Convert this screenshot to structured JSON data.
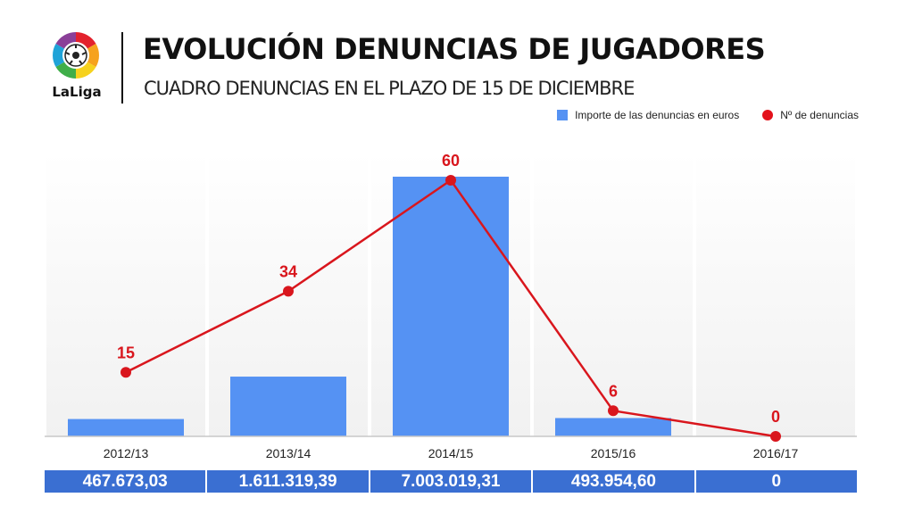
{
  "header": {
    "title": "EVOLUCIÓN DENUNCIAS DE JUGADORES",
    "subtitle": "CUADRO DENUNCIAS EN EL PLAZO DE 15 DE DICIEMBRE",
    "logo_text": "LaLiga"
  },
  "legend": {
    "bars_label": "Importe de las denuncias en euros",
    "line_label": "Nº de denuncias"
  },
  "colors": {
    "bar": "#5592f3",
    "line": "#d9161d",
    "values_strip": "#3a6fd2"
  },
  "chart_data": {
    "type": "bar",
    "categories": [
      "2012/13",
      "2013/14",
      "2014/15",
      "2015/16",
      "2016/17"
    ],
    "series": [
      {
        "name": "Importe de las denuncias en euros",
        "type": "bar",
        "values": [
          467673.03,
          1611319.39,
          7003019.31,
          493954.6,
          0
        ],
        "value_labels": [
          "467.673,03",
          "1.611.319,39",
          "7.003.019,31",
          "493.954,60",
          "0"
        ]
      },
      {
        "name": "Nº de denuncias",
        "type": "line",
        "values": [
          15,
          34,
          60,
          6,
          0
        ]
      }
    ],
    "legend_position": "top-right",
    "grid": false
  }
}
